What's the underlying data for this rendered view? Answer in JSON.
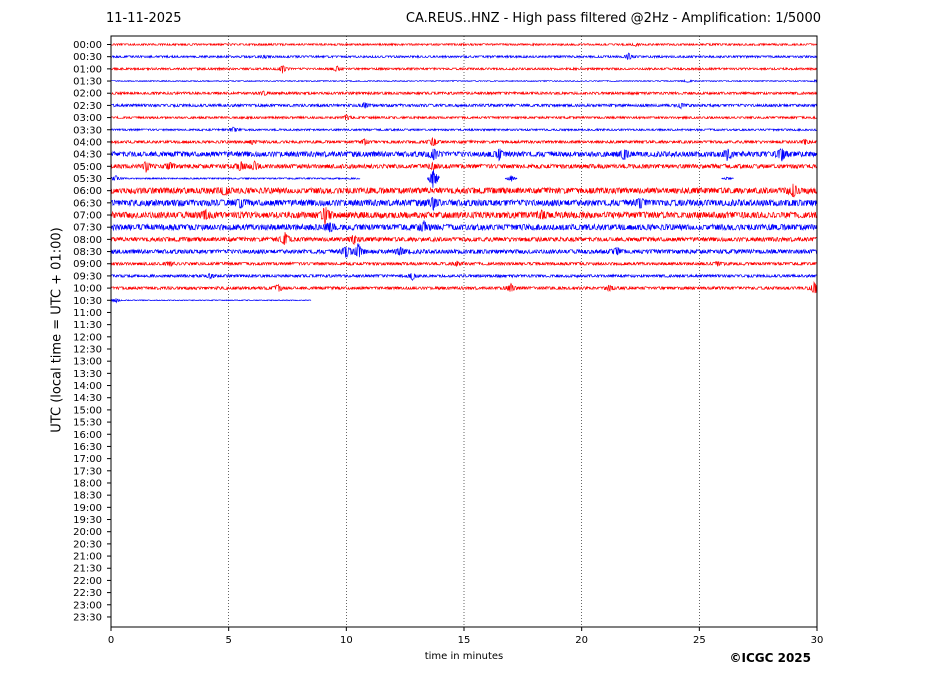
{
  "header": {
    "date": "11-11-2025",
    "title": "CA.REUS..HNZ - High pass filtered @2Hz - Amplification: 1/5000"
  },
  "footer": {
    "copyright": "©ICGC 2025"
  },
  "colors": {
    "red": "#ff0000",
    "blue": "#0000ff",
    "axis": "#000000",
    "grid": "#000000"
  },
  "chart_data": {
    "type": "line",
    "title": "CA.REUS..HNZ - High pass filtered @2Hz - Amplification: 1/5000",
    "xlabel": "time in minutes",
    "ylabel": "UTC (local time = UTC + 01:00)",
    "xlim": [
      0,
      30
    ],
    "x_ticks": [
      "0",
      "5",
      "10",
      "15",
      "20",
      "25",
      "30"
    ],
    "grid": "vertical dotted lines at 5-minute intervals",
    "y_tick_labels": [
      "00:00",
      "00:30",
      "01:00",
      "01:30",
      "02:00",
      "02:30",
      "03:00",
      "03:30",
      "04:00",
      "04:30",
      "05:00",
      "05:30",
      "06:00",
      "06:30",
      "07:00",
      "07:30",
      "08:00",
      "08:30",
      "09:00",
      "09:30",
      "10:00",
      "10:30",
      "11:00",
      "11:30",
      "12:00",
      "12:30",
      "13:00",
      "13:30",
      "14:00",
      "14:30",
      "15:00",
      "15:30",
      "16:00",
      "16:30",
      "17:00",
      "17:30",
      "18:00",
      "18:30",
      "19:00",
      "19:30",
      "20:00",
      "20:30",
      "21:00",
      "21:30",
      "22:00",
      "22:30",
      "23:00",
      "23:30"
    ],
    "traces": [
      {
        "row": "00:00",
        "color": "red",
        "start": 0.0,
        "end": 30,
        "amp": 0.9,
        "events": [
          [
            22.3,
            1.2
          ]
        ]
      },
      {
        "row": "00:30",
        "color": "blue",
        "start": 0,
        "end": 30,
        "amp": 1.0,
        "events": [
          [
            6.5,
            1.5
          ],
          [
            22.0,
            3.5
          ]
        ]
      },
      {
        "row": "01:00",
        "color": "red",
        "start": 0,
        "end": 30,
        "amp": 1.0,
        "events": [
          [
            7.3,
            4.0
          ],
          [
            9.6,
            3.0
          ]
        ]
      },
      {
        "row": "01:30",
        "color": "blue",
        "start": 0,
        "end": 30,
        "amp": 0.5,
        "events": [
          [
            24.5,
            1.5
          ],
          [
            30,
            1.5
          ]
        ]
      },
      {
        "row": "02:00",
        "color": "red",
        "start": 0,
        "end": 30,
        "amp": 1.2,
        "events": [
          [
            6.5,
            2.0
          ]
        ]
      },
      {
        "row": "02:30",
        "color": "blue",
        "start": 0,
        "end": 30,
        "amp": 1.3,
        "events": [
          [
            10.8,
            2.5
          ],
          [
            24.2,
            2.5
          ]
        ]
      },
      {
        "row": "03:00",
        "color": "red",
        "start": 0,
        "end": 30,
        "amp": 1.0,
        "events": [
          [
            10.0,
            3.0
          ]
        ]
      },
      {
        "row": "03:30",
        "color": "blue",
        "start": 0,
        "end": 30,
        "amp": 0.9,
        "events": [
          [
            5.2,
            2.5
          ]
        ]
      },
      {
        "row": "04:00",
        "color": "red",
        "start": 0,
        "end": 30,
        "amp": 1.3,
        "events": [
          [
            6.0,
            2.0
          ],
          [
            10.8,
            3.0
          ],
          [
            13.7,
            5.0
          ],
          [
            29.5,
            2.5
          ]
        ]
      },
      {
        "row": "04:30",
        "color": "blue",
        "start": 0,
        "end": 30,
        "amp": 2.5,
        "events": [
          [
            13.7,
            6.0
          ],
          [
            16.5,
            6.0
          ],
          [
            21.8,
            6.0
          ],
          [
            26.2,
            6.0
          ],
          [
            28.5,
            7.0
          ]
        ]
      },
      {
        "row": "05:00",
        "color": "red",
        "start": 0,
        "end": 30,
        "amp": 2.0,
        "events": [
          [
            1.5,
            5.0
          ],
          [
            2.5,
            4.0
          ],
          [
            5.5,
            5.0
          ],
          [
            6.1,
            4.0
          ],
          [
            13.7,
            3.0
          ]
        ]
      },
      {
        "row": "05:30",
        "color": "blue",
        "start": 0,
        "end": 10.6,
        "amp": 0.7,
        "events": [
          [
            0.2,
            3.0
          ],
          [
            13.7,
            12.0
          ],
          [
            17.0,
            3.5
          ],
          [
            26.2,
            2.0
          ]
        ]
      },
      {
        "row": "06:00",
        "color": "red",
        "start": 0,
        "end": 30,
        "amp": 2.8,
        "events": [
          [
            4.8,
            4.5
          ],
          [
            29.0,
            6.0
          ]
        ]
      },
      {
        "row": "06:30",
        "color": "blue",
        "start": 0,
        "end": 30,
        "amp": 3.0,
        "events": [
          [
            5.5,
            4.5
          ],
          [
            13.7,
            6.0
          ],
          [
            22.5,
            4.5
          ]
        ]
      },
      {
        "row": "07:00",
        "color": "red",
        "start": 0,
        "end": 30,
        "amp": 3.0,
        "events": [
          [
            4.0,
            4.0
          ],
          [
            9.1,
            9.0
          ],
          [
            18.3,
            4.0
          ]
        ]
      },
      {
        "row": "07:30",
        "color": "blue",
        "start": 0,
        "end": 30,
        "amp": 2.8,
        "events": [
          [
            9.3,
            5.0
          ],
          [
            13.3,
            5.0
          ]
        ]
      },
      {
        "row": "08:00",
        "color": "red",
        "start": 0,
        "end": 30,
        "amp": 2.0,
        "events": [
          [
            7.4,
            6.0
          ],
          [
            10.3,
            4.0
          ]
        ]
      },
      {
        "row": "08:30",
        "color": "blue",
        "start": 0,
        "end": 30,
        "amp": 2.0,
        "events": [
          [
            10.0,
            6.0
          ],
          [
            10.5,
            9.0
          ],
          [
            12.3,
            4.0
          ],
          [
            21.5,
            4.0
          ]
        ]
      },
      {
        "row": "09:00",
        "color": "red",
        "start": 0,
        "end": 30,
        "amp": 1.4,
        "events": [
          [
            2.5,
            2.0
          ],
          [
            14.7,
            2.0
          ],
          [
            25.8,
            2.0
          ]
        ]
      },
      {
        "row": "09:30",
        "color": "blue",
        "start": 0,
        "end": 30,
        "amp": 1.3,
        "events": [
          [
            4.2,
            2.5
          ],
          [
            12.8,
            4.0
          ]
        ]
      },
      {
        "row": "10:00",
        "color": "red",
        "start": 0,
        "end": 30,
        "amp": 1.4,
        "events": [
          [
            7.1,
            4.0
          ],
          [
            17.0,
            4.0
          ],
          [
            21.2,
            3.0
          ],
          [
            29.9,
            6.0
          ]
        ]
      },
      {
        "row": "10:30",
        "color": "blue",
        "start": 0,
        "end": 8.5,
        "amp": 0.4,
        "events": [
          [
            0.2,
            2.5
          ]
        ]
      }
    ]
  }
}
